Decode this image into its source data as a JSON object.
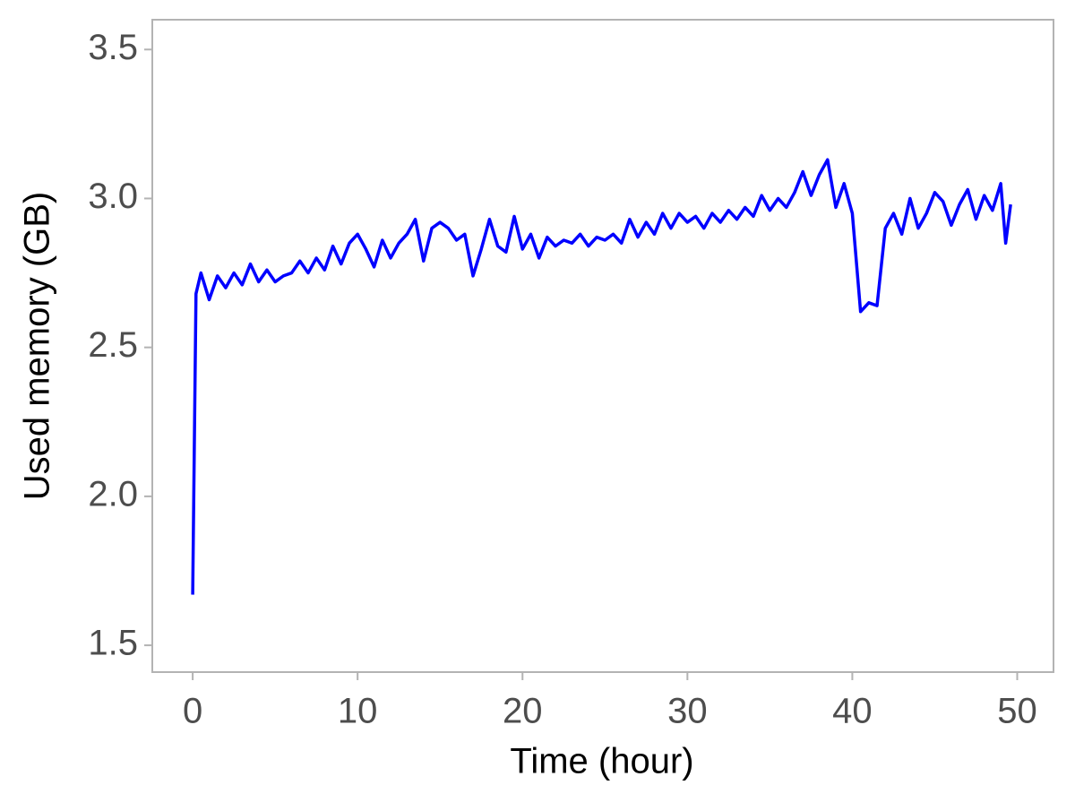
{
  "chart_data": {
    "type": "line",
    "x_label": "Time (hour)",
    "y_label": "Used memory (GB)",
    "xlim": [
      -2.45,
      52.2
    ],
    "ylim": [
      1.41,
      3.6
    ],
    "xticks": [
      0,
      10,
      20,
      30,
      40,
      50
    ],
    "yticks": [
      1.5,
      {
        "value": 2,
        "label": "2.0"
      },
      2.5,
      {
        "value": 3,
        "label": "3.0"
      },
      3.5
    ],
    "grid": false,
    "series": [
      {
        "color": "#0000ff",
        "x": [
          0,
          0.2,
          0.5,
          1,
          1.5,
          2,
          2.5,
          3,
          3.5,
          4,
          4.5,
          5,
          5.5,
          6,
          6.5,
          7,
          7.5,
          8,
          8.5,
          9,
          9.5,
          10,
          10.5,
          11,
          11.5,
          12,
          12.5,
          13,
          13.5,
          14,
          14.5,
          15,
          15.5,
          16,
          16.5,
          17,
          17.5,
          18,
          18.5,
          19,
          19.5,
          20,
          20.5,
          21,
          21.5,
          22,
          22.5,
          23,
          23.5,
          24,
          24.5,
          25,
          25.5,
          26,
          26.5,
          27,
          27.5,
          28,
          28.5,
          29,
          29.5,
          30,
          30.5,
          31,
          31.5,
          32,
          32.5,
          33,
          33.5,
          34,
          34.5,
          35,
          35.5,
          36,
          36.5,
          37,
          37.5,
          38,
          38.5,
          39,
          39.5,
          40,
          40.5,
          41,
          41.5,
          42,
          42.5,
          43,
          43.5,
          44,
          44.5,
          45,
          45.5,
          46,
          46.5,
          47,
          47.5,
          48,
          48.5,
          49,
          49.3,
          49.6
        ],
        "values": [
          1.67,
          2.68,
          2.75,
          2.66,
          2.74,
          2.7,
          2.75,
          2.71,
          2.78,
          2.72,
          2.76,
          2.72,
          2.74,
          2.75,
          2.79,
          2.75,
          2.8,
          2.76,
          2.84,
          2.78,
          2.85,
          2.88,
          2.83,
          2.77,
          2.86,
          2.8,
          2.85,
          2.88,
          2.93,
          2.79,
          2.9,
          2.92,
          2.9,
          2.86,
          2.88,
          2.74,
          2.83,
          2.93,
          2.84,
          2.82,
          2.94,
          2.83,
          2.88,
          2.8,
          2.87,
          2.84,
          2.86,
          2.85,
          2.88,
          2.84,
          2.87,
          2.86,
          2.88,
          2.85,
          2.93,
          2.87,
          2.92,
          2.88,
          2.95,
          2.9,
          2.95,
          2.92,
          2.94,
          2.9,
          2.95,
          2.92,
          2.96,
          2.93,
          2.97,
          2.94,
          3.01,
          2.96,
          3.0,
          2.97,
          3.02,
          3.09,
          3.01,
          3.08,
          3.13,
          2.97,
          3.05,
          2.95,
          2.62,
          2.65,
          2.64,
          2.9,
          2.95,
          2.88,
          3.0,
          2.9,
          2.95,
          3.02,
          2.99,
          2.91,
          2.98,
          3.03,
          2.93,
          3.01,
          2.96,
          3.05,
          2.85,
          2.98
        ]
      }
    ]
  }
}
